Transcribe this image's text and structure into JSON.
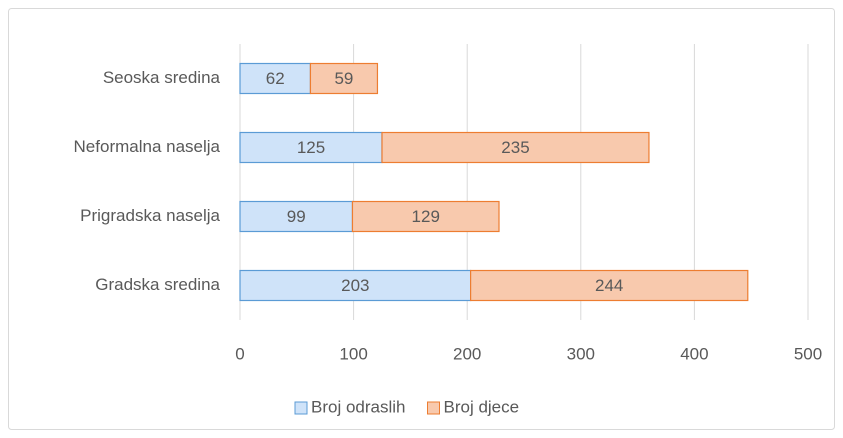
{
  "chart_data": {
    "type": "stacked_barh",
    "categories": [
      "Seoska sredina",
      "Neformalna naselja",
      "Prigradska naselja",
      "Gradska sredina"
    ],
    "series": [
      {
        "name": "Broj odraslih",
        "color": "#cfe3f9",
        "edge": "#5b9bd5",
        "values": [
          62,
          125,
          99,
          203
        ]
      },
      {
        "name": "Broj djece",
        "color": "#f8c9ad",
        "edge": "#ed7d31",
        "values": [
          59,
          235,
          129,
          244
        ]
      }
    ],
    "xlim": [
      0,
      500
    ],
    "xticks": [
      0,
      100,
      200,
      300,
      400,
      500
    ],
    "grid": true,
    "legend": "bottom"
  }
}
